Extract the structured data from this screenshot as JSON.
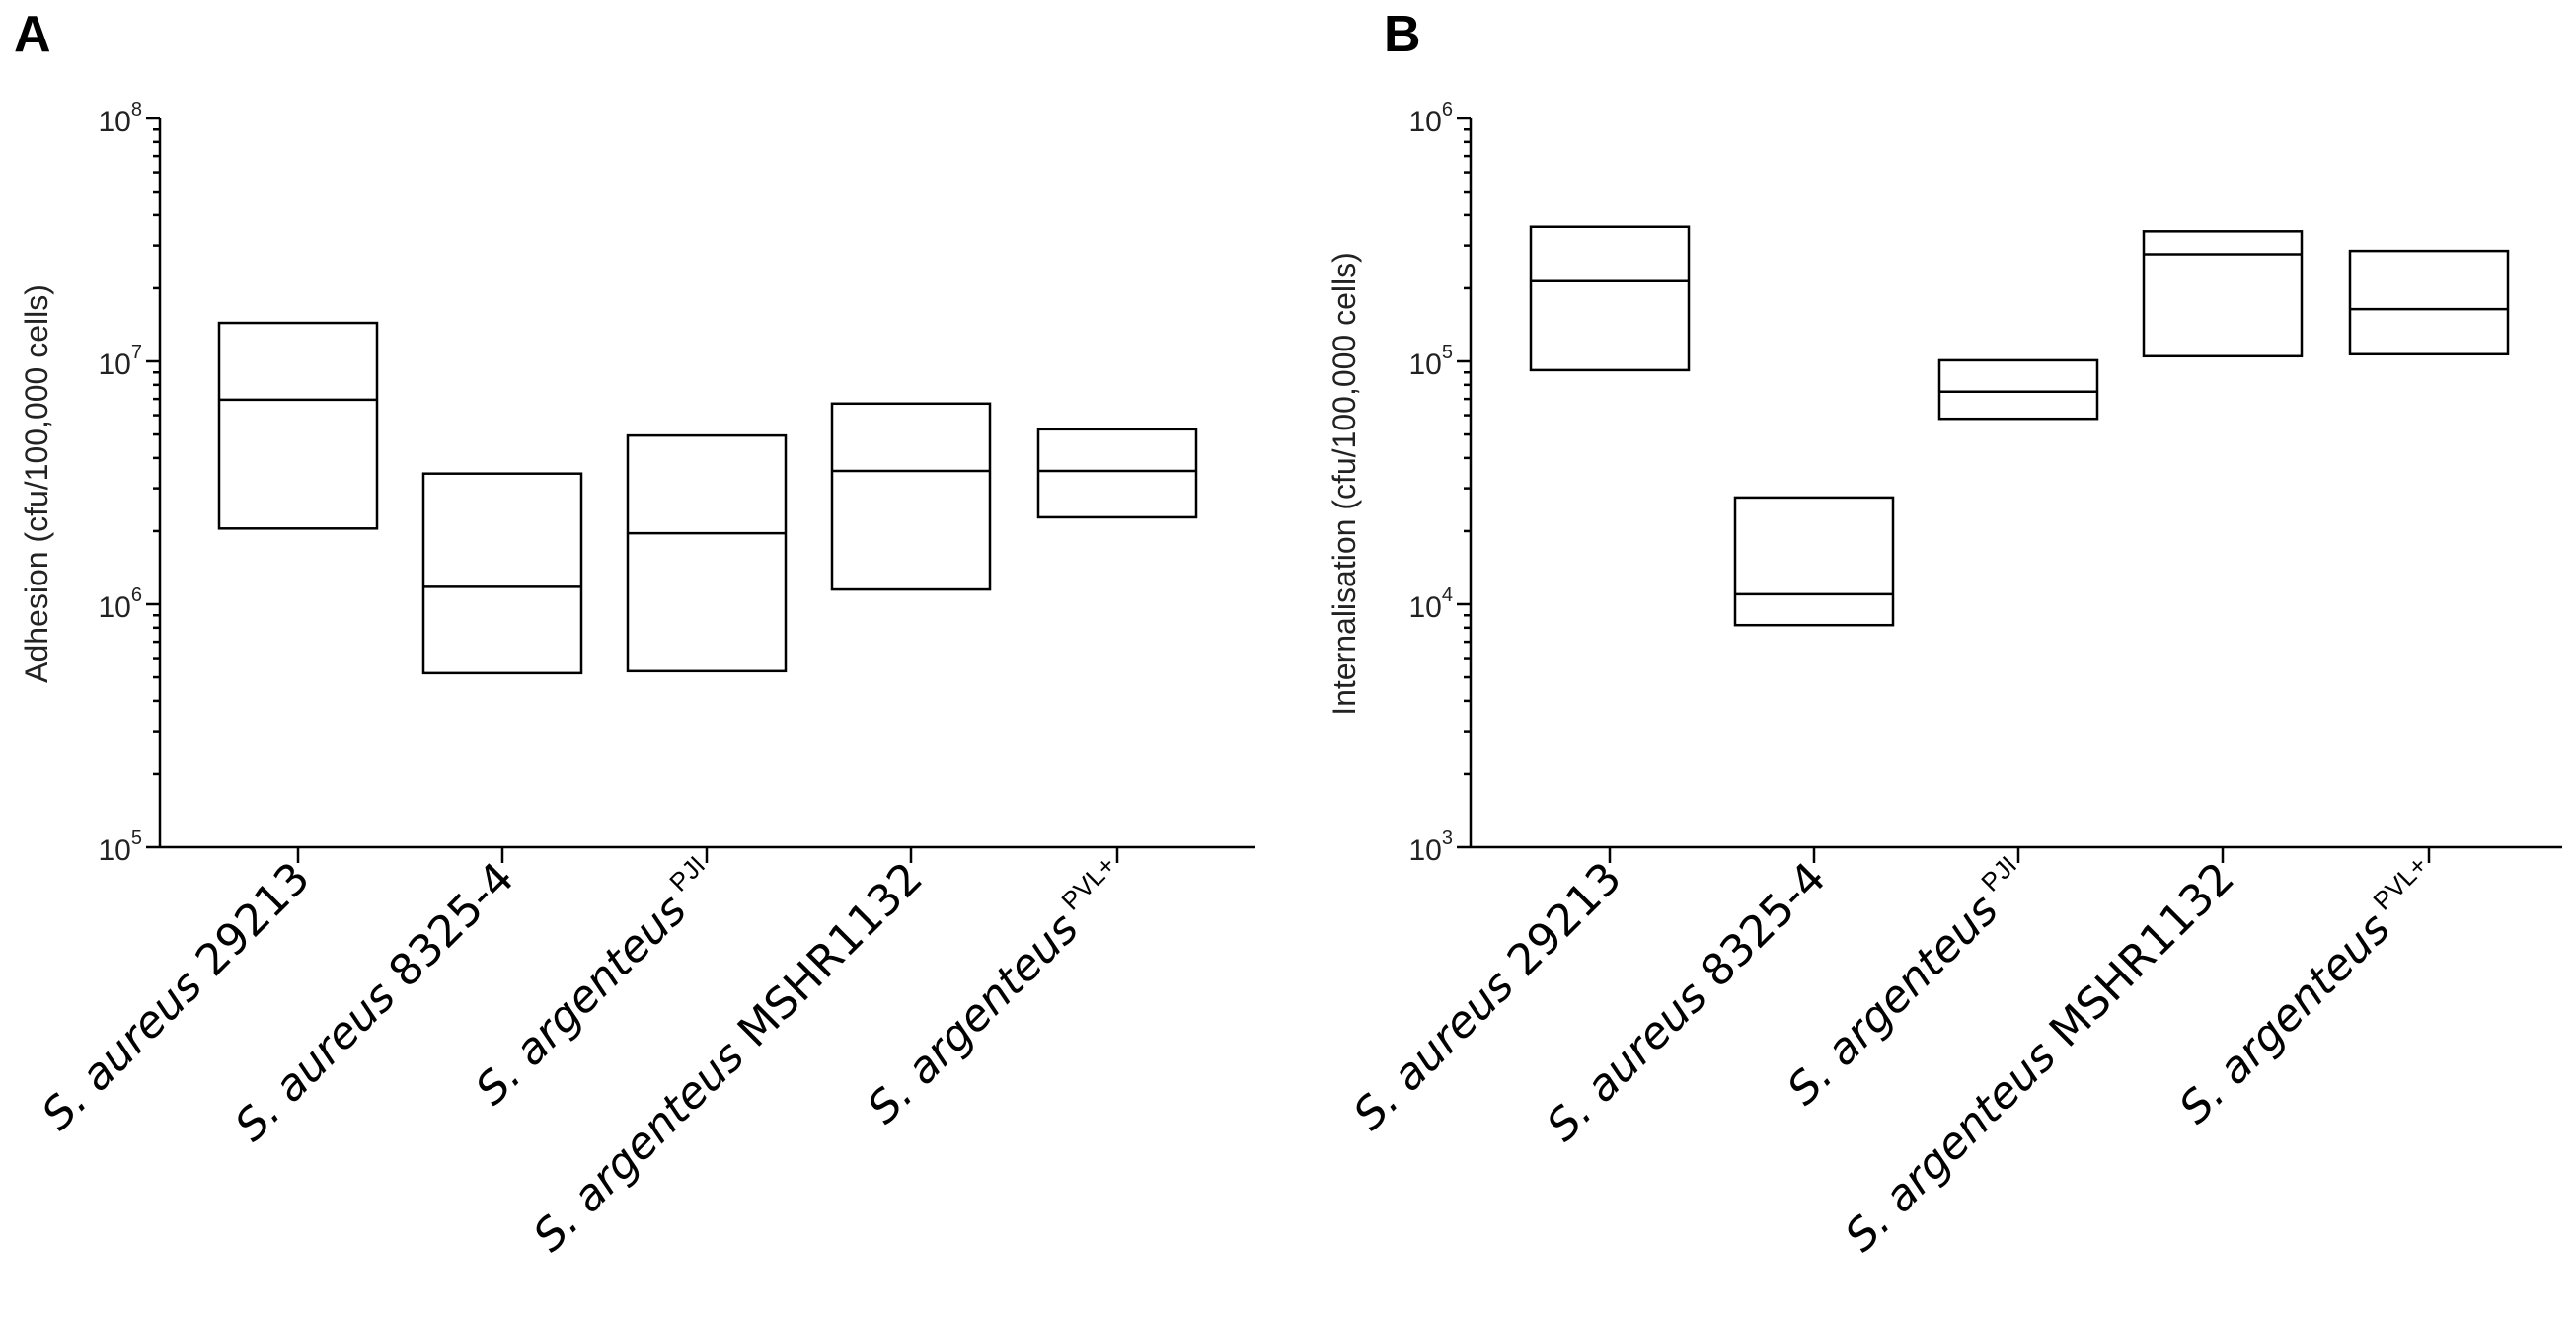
{
  "chart_data": [
    {
      "type": "box",
      "panel": "A",
      "ylabel": "Adhesion (cfu/100,000 cells)",
      "yscale": "log",
      "ylim": [
        100000,
        100000000
      ],
      "yticks": [
        {
          "base": "10",
          "exp": "5"
        },
        {
          "base": "10",
          "exp": "6"
        },
        {
          "base": "10",
          "exp": "7"
        },
        {
          "base": "10",
          "exp": "8"
        }
      ],
      "categories": [
        {
          "species": "S. aureus",
          "suffix": " 29213",
          "sup": ""
        },
        {
          "species": "S. aureus",
          "suffix": " 8325-4",
          "sup": ""
        },
        {
          "species": "S. argenteus",
          "suffix": "",
          "sup": "PJI"
        },
        {
          "species": "S. argenteus",
          "suffix": " MSHR1132",
          "sup": ""
        },
        {
          "species": "S. argenteus",
          "suffix": "",
          "sup": "PVL+"
        }
      ],
      "boxes": [
        {
          "low": 2050000,
          "median": 6950000,
          "high": 14400000
        },
        {
          "low": 520000,
          "median": 1180000,
          "high": 3450000
        },
        {
          "low": 530000,
          "median": 1960000,
          "high": 4950000
        },
        {
          "low": 1150000,
          "median": 3540000,
          "high": 6700000
        },
        {
          "low": 2280000,
          "median": 3540000,
          "high": 5250000
        }
      ]
    },
    {
      "type": "box",
      "panel": "B",
      "ylabel": "Internalisation (cfu/100,000 cells)",
      "yscale": "log",
      "ylim": [
        1000,
        1000000
      ],
      "yticks": [
        {
          "base": "10",
          "exp": "3"
        },
        {
          "base": "10",
          "exp": "4"
        },
        {
          "base": "10",
          "exp": "5"
        },
        {
          "base": "10",
          "exp": "6"
        }
      ],
      "categories": [
        {
          "species": "S. aureus",
          "suffix": " 29213",
          "sup": ""
        },
        {
          "species": "S. aureus",
          "suffix": " 8325-4",
          "sup": ""
        },
        {
          "species": "S. argenteus",
          "suffix": "",
          "sup": "PJI"
        },
        {
          "species": "S. argenteus",
          "suffix": " MSHR1132",
          "sup": ""
        },
        {
          "species": "S. argenteus",
          "suffix": "",
          "sup": "PVL+"
        }
      ],
      "boxes": [
        {
          "low": 92000,
          "median": 214000,
          "high": 358000
        },
        {
          "low": 8200,
          "median": 11000,
          "high": 27500
        },
        {
          "low": 58000,
          "median": 75000,
          "high": 101000
        },
        {
          "low": 105000,
          "median": 276000,
          "high": 343000
        },
        {
          "low": 107000,
          "median": 164000,
          "high": 285000
        }
      ]
    }
  ]
}
